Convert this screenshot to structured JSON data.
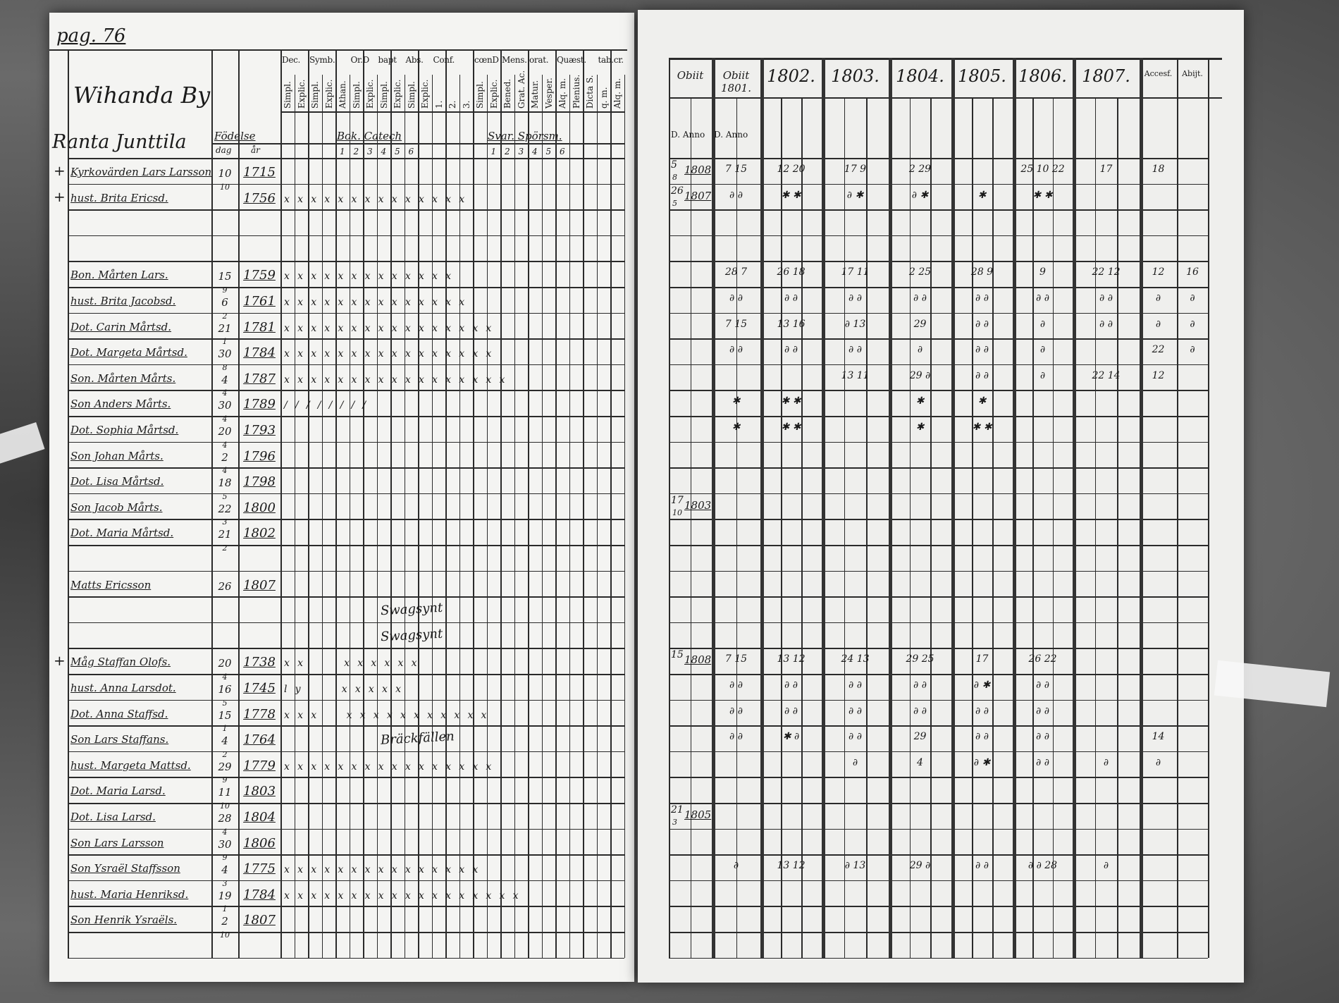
{
  "left_page": {
    "page_number": "pag. 76",
    "village": "Wihanda By",
    "farm": "Ranta Junttila",
    "birth_label": "Födelse",
    "birth_sub": [
      "dag",
      "år"
    ],
    "column_groups": [
      "Dec.",
      "Symb.",
      "Or.D",
      "bapt",
      "Abs.",
      "Conf.",
      "cœnD",
      "Mens.",
      "orat.",
      "Quæst.",
      "tab.cr."
    ],
    "sub_columns": [
      "Simpl.",
      "Explic.",
      "Simpl.",
      "Explic.",
      "Athan.",
      "Simpl.",
      "Explic.",
      "Simpl.",
      "Explic.",
      "Simpl.",
      "Explic.",
      "1.",
      "2.",
      "3.",
      "Simpl.",
      "Explic.",
      "Bened.",
      "Grat. Ac.",
      "Matur.",
      "Vesper.",
      "Alq. m.",
      "Plenius.",
      "Dicta S.",
      "q. m.",
      "Alq. m."
    ],
    "reading_label": "Bok. Catech",
    "reading_numbers": [
      "1",
      "2",
      "3",
      "4",
      "5",
      "6"
    ],
    "writing_label": "Svar. Spörsm.",
    "writing_numbers": [
      "1",
      "2",
      "3",
      "4",
      "5",
      "6"
    ],
    "rows": [
      {
        "mark": "+",
        "name": "Kyrkovärden Lars Larsson",
        "day": "10",
        "month": "",
        "year": "1715",
        "checks": ""
      },
      {
        "mark": "+",
        "name": "hust. Brita Ericsd.",
        "day": "",
        "month": "10",
        "year": "1756",
        "checks": "xxxxxxxxxxxxxx"
      },
      {
        "mark": "",
        "name": "",
        "day": "",
        "month": "",
        "year": "",
        "checks": ""
      },
      {
        "mark": "",
        "name": "",
        "day": "",
        "month": "",
        "year": "",
        "checks": ""
      },
      {
        "mark": "",
        "name": "Bon. Mårten Lars.",
        "day": "15",
        "month": "",
        "year": "1759",
        "checks": "xxxxxxxxxxxxx"
      },
      {
        "mark": "",
        "name": "hust. Brita Jacobsd.",
        "day": "6",
        "month": "9",
        "year": "1761",
        "checks": "xxxxxxxxxxxxxx"
      },
      {
        "mark": "",
        "name": "Dot. Carin Mårtsd.",
        "day": "21",
        "month": "2",
        "year": "1781",
        "checks": "xxxxxxxxxxxxxxxx"
      },
      {
        "mark": "",
        "name": "Dot. Margeta Mårtsd.",
        "day": "30",
        "month": "1",
        "year": "1784",
        "checks": "xxxxxxxxxxxxxxxx"
      },
      {
        "mark": "",
        "name": "Son. Mårten Mårts.",
        "day": "4",
        "month": "8",
        "year": "1787",
        "checks": "xxxxxxxxxxxxxxxxx"
      },
      {
        "mark": "",
        "name": "Son Anders Mårts.",
        "day": "30",
        "month": "4",
        "year": "1789",
        "checks": "////////"
      },
      {
        "mark": "",
        "name": "Dot. Sophia Mårtsd.",
        "day": "20",
        "month": "4",
        "year": "1793",
        "checks": ""
      },
      {
        "mark": "",
        "name": "Son Johan Mårts.",
        "day": "2",
        "month": "4",
        "year": "1796",
        "checks": ""
      },
      {
        "mark": "",
        "name": "Dot. Lisa Mårtsd.",
        "day": "18",
        "month": "4",
        "year": "1798",
        "checks": ""
      },
      {
        "mark": "",
        "name": "Son Jacob Mårts.",
        "day": "22",
        "month": "5",
        "year": "1800",
        "checks": ""
      },
      {
        "mark": "",
        "name": "Dot. Maria Mårtsd.",
        "day": "21",
        "month": "3",
        "year": "1802",
        "checks": ""
      },
      {
        "mark": "",
        "name": "",
        "day": "",
        "month": "2",
        "year": "",
        "checks": ""
      },
      {
        "mark": "",
        "name": "Matts Ericsson",
        "day": "26",
        "month": "",
        "year": "1807",
        "checks": ""
      },
      {
        "mark": "",
        "name": "",
        "day": "",
        "month": "",
        "year": "",
        "checks": ""
      },
      {
        "mark": "",
        "name": "",
        "day": "",
        "month": "",
        "year": "",
        "checks": ""
      },
      {
        "mark": "+",
        "name": "Måg Staffan Olofs.",
        "day": "20",
        "month": "",
        "year": "1738",
        "checks": "xx   xxxxxx"
      },
      {
        "mark": "",
        "name": "hust. Anna Larsdot.",
        "day": "16",
        "month": "4",
        "year": "1745",
        "checks": "ly   xxxxx"
      },
      {
        "mark": "",
        "name": "Dot. Anna Staffsd.",
        "day": "15",
        "month": "5",
        "year": "1778",
        "checks": "xxx  xxxxxxxxxxx"
      },
      {
        "mark": "",
        "name": "Son Lars Staffans.",
        "day": "4",
        "month": "1",
        "year": "1764",
        "checks": ""
      },
      {
        "mark": "",
        "name": "hust. Margeta Mattsd.",
        "day": "29",
        "month": "2",
        "year": "1779",
        "checks": "xxxxxxxxxxxxxxxx"
      },
      {
        "mark": "",
        "name": "Dot. Maria Larsd.",
        "day": "11",
        "month": "9",
        "year": "1803",
        "checks": ""
      },
      {
        "mark": "",
        "name": "Dot. Lisa Larsd.",
        "day": "28",
        "month": "10",
        "year": "1804",
        "checks": ""
      },
      {
        "mark": "",
        "name": "Son Lars Larsson",
        "day": "30",
        "month": "4",
        "year": "1806",
        "checks": ""
      },
      {
        "mark": "",
        "name": "Son Ysraël Staffsson",
        "day": "4",
        "month": "9",
        "year": "1775",
        "checks": "xxxxxxxxxxxxxxx"
      },
      {
        "mark": "",
        "name": "hust. Maria Henriksd.",
        "day": "19",
        "month": "3",
        "year": "1784",
        "checks": "xxxxxxxxxxxxxxxxxx"
      },
      {
        "mark": "",
        "name": "Son Henrik Ysraëls.",
        "day": "2",
        "month": "1",
        "year": "1807",
        "checks": ""
      },
      {
        "mark": "",
        "name": "",
        "day": "",
        "month": "10",
        "year": "",
        "checks": ""
      }
    ],
    "annotations": [
      "Swagsynt",
      "Swagsynt",
      "Bräckfällen"
    ]
  },
  "right_page": {
    "headers": [
      "Obiit",
      "Obiit 1801.",
      "1802.",
      "1803.",
      "1804.",
      "1805.",
      "1806.",
      "1807.",
      "Accesf.",
      "Abijt."
    ],
    "sub_headers": [
      "D. Anno",
      "D. Anno"
    ],
    "entries": [
      {
        "row": 0,
        "day": "5",
        "month": "8",
        "year": "1808"
      },
      {
        "row": 1,
        "day": "26",
        "month": "5",
        "year": "1807"
      },
      {
        "row": 13,
        "day": "17",
        "month": "10",
        "year": "1803"
      },
      {
        "row": 19,
        "day": "15",
        "month": "",
        "year": "1808"
      },
      {
        "row": 25,
        "day": "21",
        "month": "3",
        "year": "1805"
      }
    ],
    "marks": [
      {
        "row": 0,
        "col": 1,
        "text": "7 15"
      },
      {
        "row": 0,
        "col": 2,
        "text": "12 20"
      },
      {
        "row": 0,
        "col": 3,
        "text": "17 9"
      },
      {
        "row": 0,
        "col": 4,
        "text": "2 29"
      },
      {
        "row": 0,
        "col": 6,
        "text": "25 10 22"
      },
      {
        "row": 0,
        "col": 7,
        "text": "17"
      },
      {
        "row": 0,
        "col": 8,
        "text": "18"
      },
      {
        "row": 1,
        "col": 1,
        "text": "∂ ∂"
      },
      {
        "row": 1,
        "col": 2,
        "text": "✱ ✱"
      },
      {
        "row": 1,
        "col": 3,
        "text": "∂ ✱"
      },
      {
        "row": 1,
        "col": 4,
        "text": "∂ ✱"
      },
      {
        "row": 1,
        "col": 5,
        "text": "✱"
      },
      {
        "row": 1,
        "col": 6,
        "text": "✱ ✱"
      },
      {
        "row": 4,
        "col": 1,
        "text": "28 7"
      },
      {
        "row": 4,
        "col": 2,
        "text": "26 18"
      },
      {
        "row": 4,
        "col": 3,
        "text": "17 11"
      },
      {
        "row": 4,
        "col": 4,
        "text": "2 25"
      },
      {
        "row": 4,
        "col": 5,
        "text": "28 9"
      },
      {
        "row": 4,
        "col": 6,
        "text": "9"
      },
      {
        "row": 4,
        "col": 7,
        "text": "22 12"
      },
      {
        "row": 4,
        "col": 8,
        "text": "12"
      },
      {
        "row": 4,
        "col": 9,
        "text": "16"
      },
      {
        "row": 5,
        "col": 1,
        "text": "∂ ∂"
      },
      {
        "row": 5,
        "col": 2,
        "text": "∂ ∂"
      },
      {
        "row": 5,
        "col": 3,
        "text": "∂ ∂"
      },
      {
        "row": 5,
        "col": 4,
        "text": "∂ ∂"
      },
      {
        "row": 5,
        "col": 5,
        "text": "∂ ∂"
      },
      {
        "row": 5,
        "col": 6,
        "text": "∂ ∂"
      },
      {
        "row": 5,
        "col": 7,
        "text": "∂ ∂"
      },
      {
        "row": 5,
        "col": 8,
        "text": "∂"
      },
      {
        "row": 5,
        "col": 9,
        "text": "∂"
      },
      {
        "row": 6,
        "col": 1,
        "text": "7 15"
      },
      {
        "row": 6,
        "col": 2,
        "text": "13 16"
      },
      {
        "row": 6,
        "col": 3,
        "text": "∂ 13"
      },
      {
        "row": 6,
        "col": 4,
        "text": "29"
      },
      {
        "row": 6,
        "col": 5,
        "text": "∂ ∂"
      },
      {
        "row": 6,
        "col": 6,
        "text": "∂"
      },
      {
        "row": 6,
        "col": 7,
        "text": "∂ ∂"
      },
      {
        "row": 6,
        "col": 8,
        "text": "∂"
      },
      {
        "row": 6,
        "col": 9,
        "text": "∂"
      },
      {
        "row": 7,
        "col": 1,
        "text": "∂ ∂"
      },
      {
        "row": 7,
        "col": 2,
        "text": "∂ ∂"
      },
      {
        "row": 7,
        "col": 3,
        "text": "∂ ∂"
      },
      {
        "row": 7,
        "col": 4,
        "text": "∂"
      },
      {
        "row": 7,
        "col": 5,
        "text": "∂ ∂"
      },
      {
        "row": 7,
        "col": 6,
        "text": "∂"
      },
      {
        "row": 7,
        "col": 8,
        "text": "22"
      },
      {
        "row": 7,
        "col": 9,
        "text": "∂"
      },
      {
        "row": 8,
        "col": 3,
        "text": "13 11"
      },
      {
        "row": 8,
        "col": 4,
        "text": "29 ∂"
      },
      {
        "row": 8,
        "col": 5,
        "text": "∂ ∂"
      },
      {
        "row": 8,
        "col": 6,
        "text": "∂"
      },
      {
        "row": 8,
        "col": 7,
        "text": "22 14"
      },
      {
        "row": 8,
        "col": 8,
        "text": "12"
      },
      {
        "row": 9,
        "col": 1,
        "text": "✱"
      },
      {
        "row": 9,
        "col": 2,
        "text": "✱ ✱"
      },
      {
        "row": 9,
        "col": 4,
        "text": "✱"
      },
      {
        "row": 9,
        "col": 5,
        "text": "✱"
      },
      {
        "row": 10,
        "col": 1,
        "text": "✱"
      },
      {
        "row": 10,
        "col": 2,
        "text": "✱ ✱"
      },
      {
        "row": 10,
        "col": 4,
        "text": "✱"
      },
      {
        "row": 10,
        "col": 5,
        "text": "✱ ✱"
      },
      {
        "row": 19,
        "col": 1,
        "text": "7 15"
      },
      {
        "row": 19,
        "col": 2,
        "text": "13 12"
      },
      {
        "row": 19,
        "col": 3,
        "text": "24 13"
      },
      {
        "row": 19,
        "col": 4,
        "text": "29 25"
      },
      {
        "row": 19,
        "col": 5,
        "text": "17"
      },
      {
        "row": 19,
        "col": 6,
        "text": "26 22"
      },
      {
        "row": 20,
        "col": 1,
        "text": "∂ ∂"
      },
      {
        "row": 20,
        "col": 2,
        "text": "∂ ∂"
      },
      {
        "row": 20,
        "col": 3,
        "text": "∂ ∂"
      },
      {
        "row": 20,
        "col": 4,
        "text": "∂ ∂"
      },
      {
        "row": 20,
        "col": 5,
        "text": "∂ ✱"
      },
      {
        "row": 20,
        "col": 6,
        "text": "∂ ∂"
      },
      {
        "row": 21,
        "col": 1,
        "text": "∂ ∂"
      },
      {
        "row": 21,
        "col": 2,
        "text": "∂ ∂"
      },
      {
        "row": 21,
        "col": 3,
        "text": "∂ ∂"
      },
      {
        "row": 21,
        "col": 4,
        "text": "∂ ∂"
      },
      {
        "row": 21,
        "col": 5,
        "text": "∂ ∂"
      },
      {
        "row": 21,
        "col": 6,
        "text": "∂ ∂"
      },
      {
        "row": 22,
        "col": 1,
        "text": "∂ ∂"
      },
      {
        "row": 22,
        "col": 2,
        "text": "✱ ∂"
      },
      {
        "row": 22,
        "col": 3,
        "text": "∂ ∂"
      },
      {
        "row": 22,
        "col": 4,
        "text": "29"
      },
      {
        "row": 22,
        "col": 5,
        "text": "∂ ∂"
      },
      {
        "row": 22,
        "col": 6,
        "text": "∂ ∂"
      },
      {
        "row": 22,
        "col": 8,
        "text": "14"
      },
      {
        "row": 23,
        "col": 3,
        "text": "∂"
      },
      {
        "row": 23,
        "col": 4,
        "text": "4"
      },
      {
        "row": 23,
        "col": 5,
        "text": "∂ ✱"
      },
      {
        "row": 23,
        "col": 6,
        "text": "∂ ∂"
      },
      {
        "row": 23,
        "col": 7,
        "text": "∂"
      },
      {
        "row": 23,
        "col": 8,
        "text": "∂"
      },
      {
        "row": 27,
        "col": 1,
        "text": "∂"
      },
      {
        "row": 27,
        "col": 2,
        "text": "13 12"
      },
      {
        "row": 27,
        "col": 3,
        "text": "∂ 13"
      },
      {
        "row": 27,
        "col": 4,
        "text": "29 ∂"
      },
      {
        "row": 27,
        "col": 5,
        "text": "∂ ∂"
      },
      {
        "row": 27,
        "col": 6,
        "text": "∂ ∂ 28"
      },
      {
        "row": 27,
        "col": 7,
        "text": "∂"
      }
    ]
  },
  "colors": {
    "ink": "#1a1a1a",
    "paper": "#f4f4f2",
    "scan_background": "#5a5a5a"
  }
}
